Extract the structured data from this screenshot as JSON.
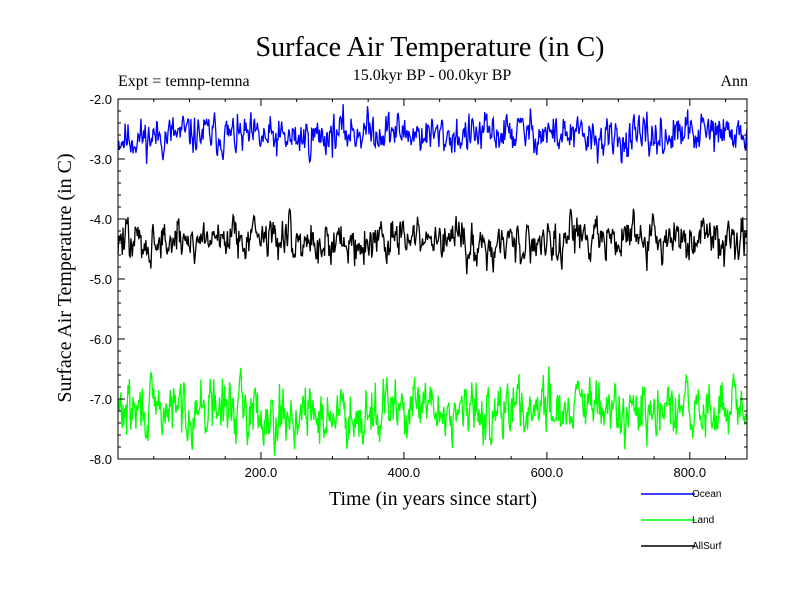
{
  "chart_data": {
    "type": "line",
    "title": "Surface Air Temperature (in C)",
    "subtitle": "15.0kyr BP - 00.0kyr BP",
    "left_annotation": "Expt = temnp-temna",
    "right_annotation": "Ann",
    "xlabel": "Time (in years since start)",
    "ylabel": "Surface Air Temperature (in C)",
    "xlim": [
      0,
      880
    ],
    "ylim": [
      -8.0,
      -2.0
    ],
    "xticks": [
      200,
      400,
      600,
      800
    ],
    "xtick_labels": [
      "200.0",
      "400.0",
      "600.0",
      "800.0"
    ],
    "yticks": [
      -2.0,
      -3.0,
      -4.0,
      -5.0,
      -6.0,
      -7.0,
      -8.0
    ],
    "ytick_labels": [
      "-2.0",
      "-3.0",
      "-4.0",
      "-5.0",
      "-6.0",
      "-7.0",
      "-8.0"
    ],
    "legend_position": "bottom-right outside",
    "series": [
      {
        "name": "Ocean",
        "color": "#0000ff",
        "mean": -2.6,
        "spread": 0.15,
        "seed": 11
      },
      {
        "name": "Land",
        "color": "#00ff00",
        "mean": -7.2,
        "spread": 0.22,
        "seed": 29
      },
      {
        "name": "AllSurf",
        "color": "#000000",
        "mean": -4.35,
        "spread": 0.16,
        "seed": 47
      }
    ],
    "n_points": 880
  }
}
